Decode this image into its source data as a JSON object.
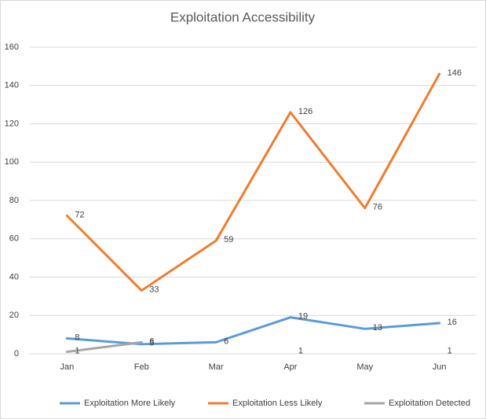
{
  "chart_data": {
    "type": "line",
    "title": "Exploitation Accessibility",
    "categories": [
      "Jan",
      "Feb",
      "Mar",
      "Apr",
      "May",
      "Jun"
    ],
    "series": [
      {
        "name": "Exploitation More Likely",
        "color": "#5b9bd5",
        "values": [
          8,
          5,
          6,
          19,
          13,
          16
        ]
      },
      {
        "name": "Exploitation Less Likely",
        "color": "#ed7d31",
        "values": [
          72,
          33,
          59,
          126,
          76,
          146
        ]
      },
      {
        "name": "Exploitation Detected",
        "color": "#a5a5a5",
        "values": [
          1,
          6,
          null,
          1,
          null,
          1
        ]
      }
    ],
    "ylim": [
      0,
      160
    ],
    "yticks": [
      0,
      20,
      40,
      60,
      80,
      100,
      120,
      140,
      160
    ],
    "grid": true,
    "legend": "bottom"
  }
}
